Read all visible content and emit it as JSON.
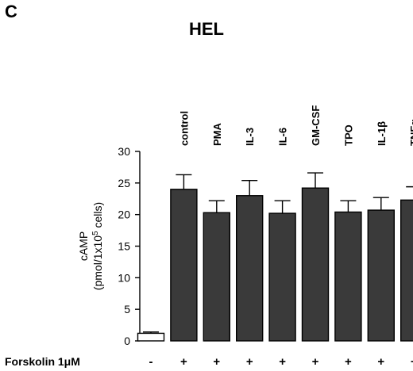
{
  "panel_label": "C",
  "chart_data": {
    "type": "bar",
    "title": "HEL",
    "ylabel_line1": "cAMP",
    "ylabel_line2": "(pmol/1x10",
    "ylabel_sup": "5",
    "ylabel_line2_end": " cells)",
    "ylim": [
      0,
      30
    ],
    "yticks": [
      0,
      5,
      10,
      15,
      20,
      25,
      30
    ],
    "categories": [
      "",
      "control",
      "PMA",
      "IL-3",
      "IL-6",
      "GM-CSF",
      "TPO",
      "IL-1β",
      "TNFα"
    ],
    "values": [
      1.2,
      24.0,
      20.3,
      23.0,
      20.2,
      24.2,
      20.4,
      20.7,
      22.3
    ],
    "errors": [
      0.2,
      2.3,
      1.9,
      2.4,
      2.0,
      2.4,
      1.8,
      2.0,
      2.1
    ],
    "bar_fill": [
      "#ffffff",
      "#3a3a3a",
      "#3a3a3a",
      "#3a3a3a",
      "#3a3a3a",
      "#3a3a3a",
      "#3a3a3a",
      "#3a3a3a",
      "#3a3a3a"
    ],
    "treatment_label": "Forskolin 1μM",
    "treatment_marks": [
      "-",
      "+",
      "+",
      "+",
      "+",
      "+",
      "+",
      "+",
      "+"
    ],
    "grid": false,
    "legend": "none"
  }
}
